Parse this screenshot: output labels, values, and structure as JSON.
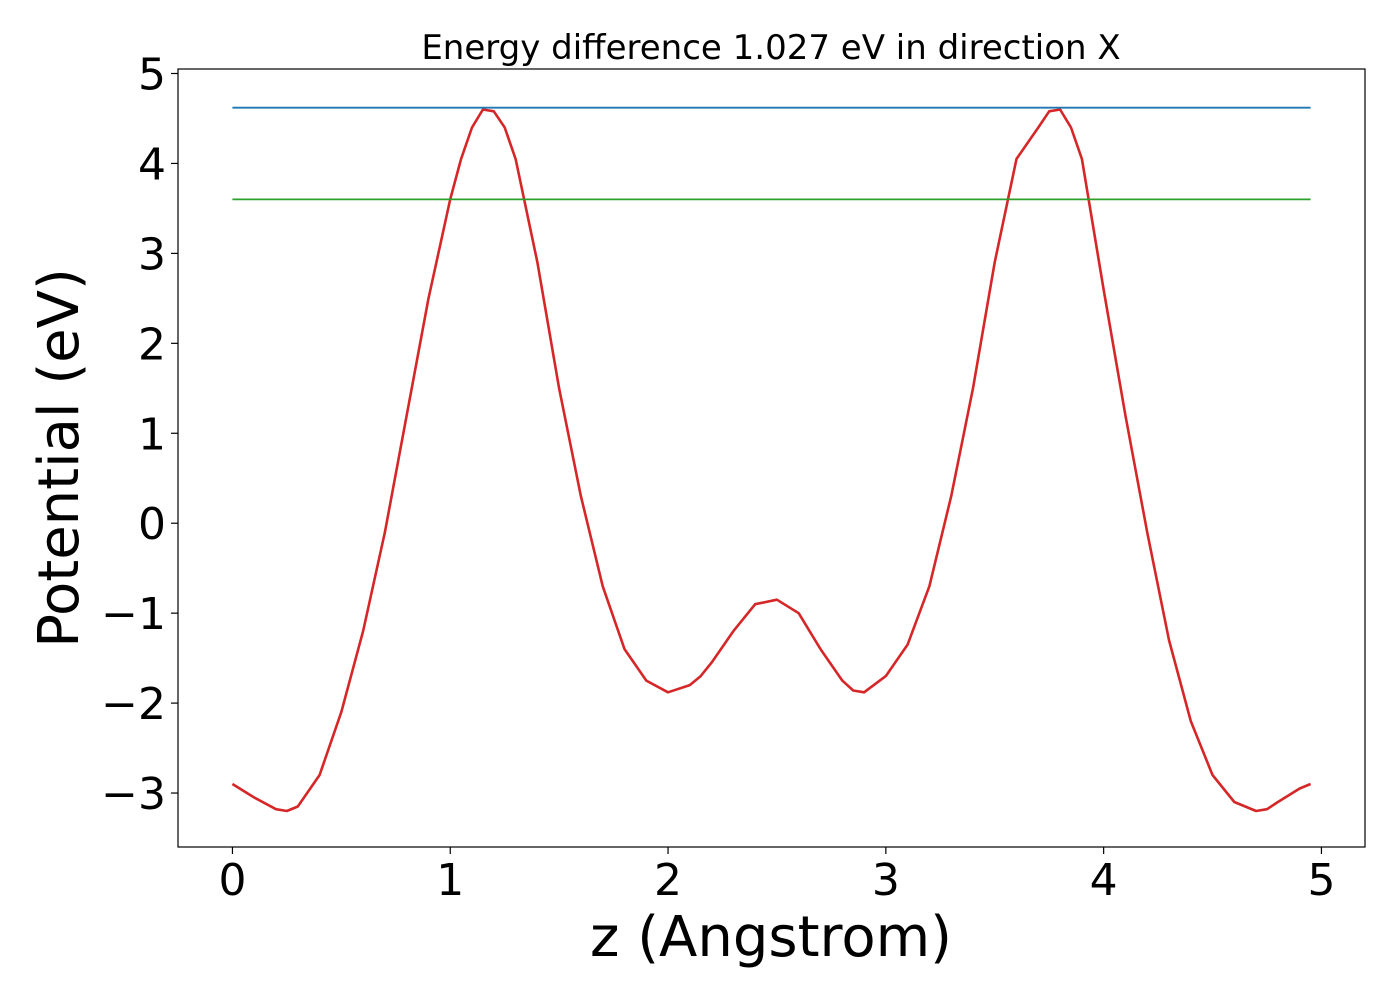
{
  "chart_data": {
    "type": "line",
    "title": "Energy difference 1.027 eV in direction X",
    "xlabel": "z (Angstrom)",
    "ylabel": "Potential (eV)",
    "xlim": [
      -0.25,
      5.2
    ],
    "ylim": [
      -3.6,
      5.05
    ],
    "xticks": [
      0,
      1,
      2,
      3,
      4,
      5
    ],
    "xtick_labels": [
      "0",
      "1",
      "2",
      "3",
      "4",
      "5"
    ],
    "yticks": [
      -3,
      -2,
      -1,
      0,
      1,
      2,
      3,
      4,
      5
    ],
    "ytick_labels": [
      "−3",
      "−2",
      "−1",
      "0",
      "1",
      "2",
      "3",
      "4",
      "5"
    ],
    "grid": false,
    "series": [
      {
        "color": "#d62728",
        "x": [
          0.0,
          0.1,
          0.2,
          0.25,
          0.3,
          0.4,
          0.5,
          0.6,
          0.7,
          0.8,
          0.9,
          1.0,
          1.05,
          1.1,
          1.15,
          1.2,
          1.25,
          1.3,
          1.4,
          1.5,
          1.6,
          1.7,
          1.8,
          1.9,
          2.0,
          2.1,
          2.15,
          2.2,
          2.3,
          2.4,
          2.5,
          2.6,
          2.7,
          2.8,
          2.85,
          2.9,
          3.0,
          3.1,
          3.2,
          3.3,
          3.4,
          3.5,
          3.6,
          3.7,
          3.75,
          3.8,
          3.85,
          3.9,
          4.0,
          4.1,
          4.2,
          4.3,
          4.4,
          4.5,
          4.6,
          4.7,
          4.75,
          4.8,
          4.9,
          4.95
        ],
        "y": [
          -2.9,
          -3.05,
          -3.18,
          -3.2,
          -3.15,
          -2.8,
          -2.1,
          -1.2,
          -0.1,
          1.2,
          2.5,
          3.6,
          4.05,
          4.4,
          4.6,
          4.58,
          4.4,
          4.05,
          2.9,
          1.5,
          0.3,
          -0.7,
          -1.4,
          -1.75,
          -1.88,
          -1.8,
          -1.7,
          -1.55,
          -1.2,
          -0.9,
          -0.85,
          -1.0,
          -1.4,
          -1.75,
          -1.86,
          -1.88,
          -1.7,
          -1.35,
          -0.7,
          0.3,
          1.5,
          2.9,
          4.05,
          4.4,
          4.58,
          4.6,
          4.4,
          4.05,
          2.6,
          1.2,
          -0.1,
          -1.3,
          -2.2,
          -2.8,
          -3.1,
          -3.2,
          -3.18,
          -3.1,
          -2.95,
          -2.9
        ]
      },
      {
        "color": "#1f77b4",
        "x": [
          0.0,
          4.95
        ],
        "y": [
          4.62,
          4.62
        ]
      },
      {
        "color": "#2ca02c",
        "x": [
          0.0,
          4.95
        ],
        "y": [
          3.6,
          3.6
        ]
      }
    ]
  }
}
